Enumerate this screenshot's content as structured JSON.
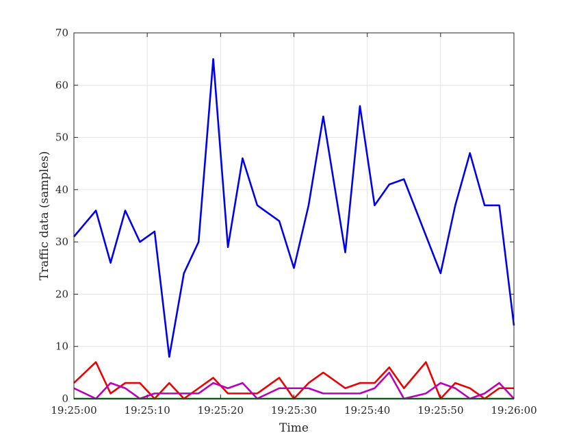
{
  "chart_data": {
    "type": "line",
    "title": "",
    "xlabel": "Time",
    "ylabel": "Traffic data (samples)",
    "xlim": [
      "19:25:00",
      "19:26:00"
    ],
    "ylim": [
      0,
      70
    ],
    "x_ticks": [
      "19:25:00",
      "19:25:10",
      "19:25:20",
      "19:25:30",
      "19:25:40",
      "19:25:50",
      "19:26:00"
    ],
    "y_ticks": [
      "0",
      "10",
      "20",
      "30",
      "40",
      "50",
      "60",
      "70"
    ],
    "grid": true,
    "legend": "none",
    "series": [
      {
        "color": "#0000ee",
        "points": [
          [
            "19:25:00",
            31
          ],
          [
            "19:25:03",
            36
          ],
          [
            "19:25:05",
            26
          ],
          [
            "19:25:07",
            36
          ],
          [
            "19:25:09",
            30
          ],
          [
            "19:25:11",
            32
          ],
          [
            "19:25:13",
            8
          ],
          [
            "19:25:15",
            24
          ],
          [
            "19:25:17",
            30
          ],
          [
            "19:25:19",
            65
          ],
          [
            "19:25:21",
            29
          ],
          [
            "19:25:23",
            46
          ],
          [
            "19:25:25",
            37
          ],
          [
            "19:25:28",
            34
          ],
          [
            "19:25:30",
            25
          ],
          [
            "19:25:32",
            37
          ],
          [
            "19:25:34",
            54
          ],
          [
            "19:25:37",
            28
          ],
          [
            "19:25:39",
            56
          ],
          [
            "19:25:41",
            37
          ],
          [
            "19:25:43",
            41
          ],
          [
            "19:25:45",
            42
          ],
          [
            "19:25:50",
            24
          ],
          [
            "19:25:52",
            37
          ],
          [
            "19:25:54",
            47
          ],
          [
            "19:25:56",
            37
          ],
          [
            "19:25:58",
            37
          ],
          [
            "19:26:00",
            14
          ]
        ]
      },
      {
        "color": "#ee0000",
        "points": [
          [
            "19:25:00",
            3
          ],
          [
            "19:25:03",
            7
          ],
          [
            "19:25:05",
            1
          ],
          [
            "19:25:07",
            3
          ],
          [
            "19:25:09",
            3
          ],
          [
            "19:25:11",
            0
          ],
          [
            "19:25:13",
            3
          ],
          [
            "19:25:15",
            0
          ],
          [
            "19:25:19",
            4
          ],
          [
            "19:25:21",
            1
          ],
          [
            "19:25:23",
            1
          ],
          [
            "19:25:25",
            1
          ],
          [
            "19:25:28",
            4
          ],
          [
            "19:25:30",
            0
          ],
          [
            "19:25:32",
            3
          ],
          [
            "19:25:34",
            5
          ],
          [
            "19:25:37",
            2
          ],
          [
            "19:25:39",
            3
          ],
          [
            "19:25:41",
            3
          ],
          [
            "19:25:43",
            6
          ],
          [
            "19:25:45",
            2
          ],
          [
            "19:25:48",
            7
          ],
          [
            "19:25:50",
            0
          ],
          [
            "19:25:52",
            3
          ],
          [
            "19:25:54",
            2
          ],
          [
            "19:25:56",
            0
          ],
          [
            "19:25:58",
            2
          ],
          [
            "19:26:00",
            2
          ]
        ]
      },
      {
        "color": "#bb00bb",
        "points": [
          [
            "19:25:00",
            2
          ],
          [
            "19:25:03",
            0
          ],
          [
            "19:25:05",
            3
          ],
          [
            "19:25:07",
            2
          ],
          [
            "19:25:09",
            0
          ],
          [
            "19:25:11",
            1
          ],
          [
            "19:25:13",
            1
          ],
          [
            "19:25:15",
            1
          ],
          [
            "19:25:17",
            1
          ],
          [
            "19:25:19",
            3
          ],
          [
            "19:25:21",
            2
          ],
          [
            "19:25:23",
            3
          ],
          [
            "19:25:25",
            0
          ],
          [
            "19:25:28",
            2
          ],
          [
            "19:25:30",
            2
          ],
          [
            "19:25:32",
            2
          ],
          [
            "19:25:34",
            1
          ],
          [
            "19:25:37",
            1
          ],
          [
            "19:25:39",
            1
          ],
          [
            "19:25:41",
            2
          ],
          [
            "19:25:43",
            5
          ],
          [
            "19:25:45",
            0
          ],
          [
            "19:25:48",
            1
          ],
          [
            "19:25:50",
            3
          ],
          [
            "19:25:52",
            2
          ],
          [
            "19:25:54",
            0
          ],
          [
            "19:25:56",
            1
          ],
          [
            "19:25:58",
            3
          ],
          [
            "19:26:00",
            0
          ]
        ]
      },
      {
        "color": "#00881a",
        "points": [
          [
            "19:25:00",
            0
          ],
          [
            "19:26:00",
            0
          ]
        ]
      }
    ]
  }
}
